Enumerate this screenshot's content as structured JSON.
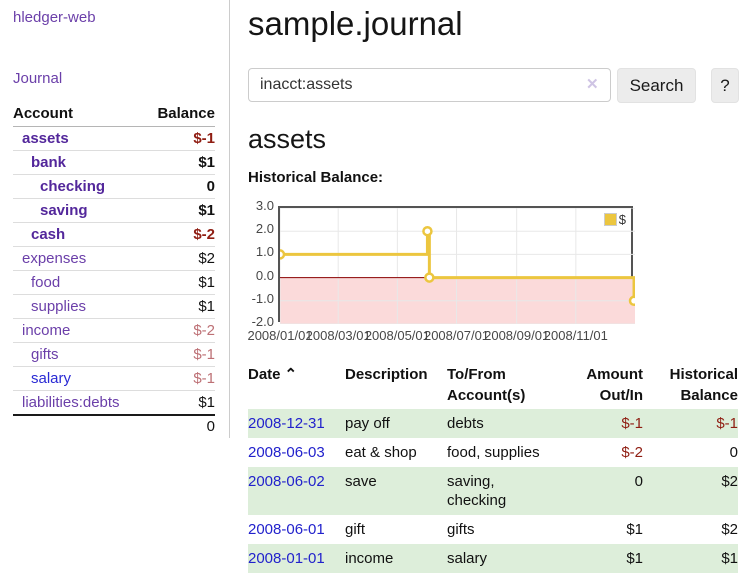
{
  "app": {
    "title": "hledger-web"
  },
  "sidebar": {
    "journal_link": "Journal",
    "accounts_table": {
      "account_header": "Account",
      "balance_header": "Balance",
      "rows": [
        {
          "name": "assets",
          "depth": 1,
          "bold": true,
          "balance": "$-1",
          "balance_class": "amt-neg"
        },
        {
          "name": "bank",
          "depth": 2,
          "bold": true,
          "balance": "$1",
          "balance_class": "amt-pos"
        },
        {
          "name": "checking",
          "depth": 3,
          "bold": true,
          "balance": "0",
          "balance_class": "amt-pos"
        },
        {
          "name": "saving",
          "depth": 3,
          "bold": true,
          "balance": "$1",
          "balance_class": "amt-pos"
        },
        {
          "name": "cash",
          "depth": 2,
          "bold": true,
          "balance": "$-2",
          "balance_class": "amt-neg"
        },
        {
          "name": "expenses",
          "depth": 1,
          "bold": false,
          "balance": "$2",
          "balance_class": "amt-pos"
        },
        {
          "name": "food",
          "depth": 2,
          "bold": false,
          "balance": "$1",
          "balance_class": "amt-pos"
        },
        {
          "name": "supplies",
          "depth": 2,
          "bold": false,
          "balance": "$1",
          "balance_class": "amt-pos"
        },
        {
          "name": "income",
          "depth": 1,
          "bold": false,
          "balance": "$-2",
          "balance_class": "amt-negfade"
        },
        {
          "name": "gifts",
          "depth": 2,
          "bold": false,
          "balance": "$-1",
          "balance_class": "amt-negfade"
        },
        {
          "name": "salary",
          "depth": 2,
          "bold": false,
          "blue": true,
          "balance": "$-1",
          "balance_class": "amt-negfade"
        },
        {
          "name": "liabilities:debts",
          "depth": 1,
          "bold": false,
          "balance": "$1",
          "balance_class": "amt-pos"
        }
      ],
      "total": "0"
    }
  },
  "main": {
    "title": "sample.journal",
    "search": {
      "value": "inacct:assets",
      "clear_icon": "✕",
      "search_button": "Search",
      "help_button": "?"
    },
    "account_heading": "assets",
    "chart_label": "Historical Balance:",
    "register_table": {
      "headers": {
        "date": "Date",
        "description": "Description",
        "accounts": "To/From Account(s)",
        "amount": "Amount Out/In",
        "balance": "Historical Balance"
      },
      "sort_icon": "⌃",
      "rows": [
        {
          "date": "2008-12-31",
          "description": "pay off",
          "accounts": "debts",
          "amount": "$-1",
          "amount_class": "amt-neg",
          "balance": "$-1",
          "balance_class": "amt-neg",
          "shaded": true
        },
        {
          "date": "2008-06-03",
          "description": "eat & shop",
          "accounts": "food, supplies",
          "amount": "$-2",
          "amount_class": "amt-neg",
          "balance": "0",
          "balance_class": "amt-pos",
          "shaded": false
        },
        {
          "date": "2008-06-02",
          "description": "save",
          "accounts": "saving, checking",
          "amount": "0",
          "amount_class": "amt-pos",
          "balance": "$2",
          "balance_class": "amt-pos",
          "shaded": true
        },
        {
          "date": "2008-06-01",
          "description": "gift",
          "accounts": "gifts",
          "amount": "$1",
          "amount_class": "amt-pos",
          "balance": "$2",
          "balance_class": "amt-pos",
          "shaded": false
        },
        {
          "date": "2008-01-01",
          "description": "income",
          "accounts": "salary",
          "amount": "$1",
          "amount_class": "amt-pos",
          "balance": "$1",
          "balance_class": "amt-pos",
          "shaded": true
        }
      ]
    }
  },
  "chart_data": {
    "type": "line",
    "step": true,
    "title": "Historical Balance",
    "legend": "$",
    "legend_position": "top-right",
    "grid": true,
    "ylim": [
      -2,
      3
    ],
    "y_ticks": [
      {
        "label": "3.0",
        "value": 3
      },
      {
        "label": "2.0",
        "value": 2
      },
      {
        "label": "1.0",
        "value": 1
      },
      {
        "label": "0.0",
        "value": 0
      },
      {
        "label": "-1.0",
        "value": -1
      },
      {
        "label": "-2.0",
        "value": -2
      }
    ],
    "x_range_days": [
      0,
      366
    ],
    "x_ticks": [
      {
        "label": "2008/01/01",
        "day": 0
      },
      {
        "label": "2008/03/01",
        "day": 60
      },
      {
        "label": "2008/05/01",
        "day": 121
      },
      {
        "label": "2008/07/01",
        "day": 182
      },
      {
        "label": "2008/09/01",
        "day": 244
      },
      {
        "label": "2008/11/01",
        "day": 305
      }
    ],
    "series": [
      {
        "name": "$",
        "color": "#ecc63f",
        "points": [
          {
            "date": "2008-01-01",
            "day": 0,
            "value": 1
          },
          {
            "date": "2008-06-01",
            "day": 152,
            "value": 2
          },
          {
            "date": "2008-06-03",
            "day": 154,
            "value": 0
          },
          {
            "date": "2008-12-31",
            "day": 365,
            "value": -1
          }
        ]
      }
    ],
    "negative_region_color": "#fbdada",
    "zero_line_color": "#8b0000",
    "gridline_color": "#e8e8e8",
    "plot_border_color": "#545454"
  }
}
